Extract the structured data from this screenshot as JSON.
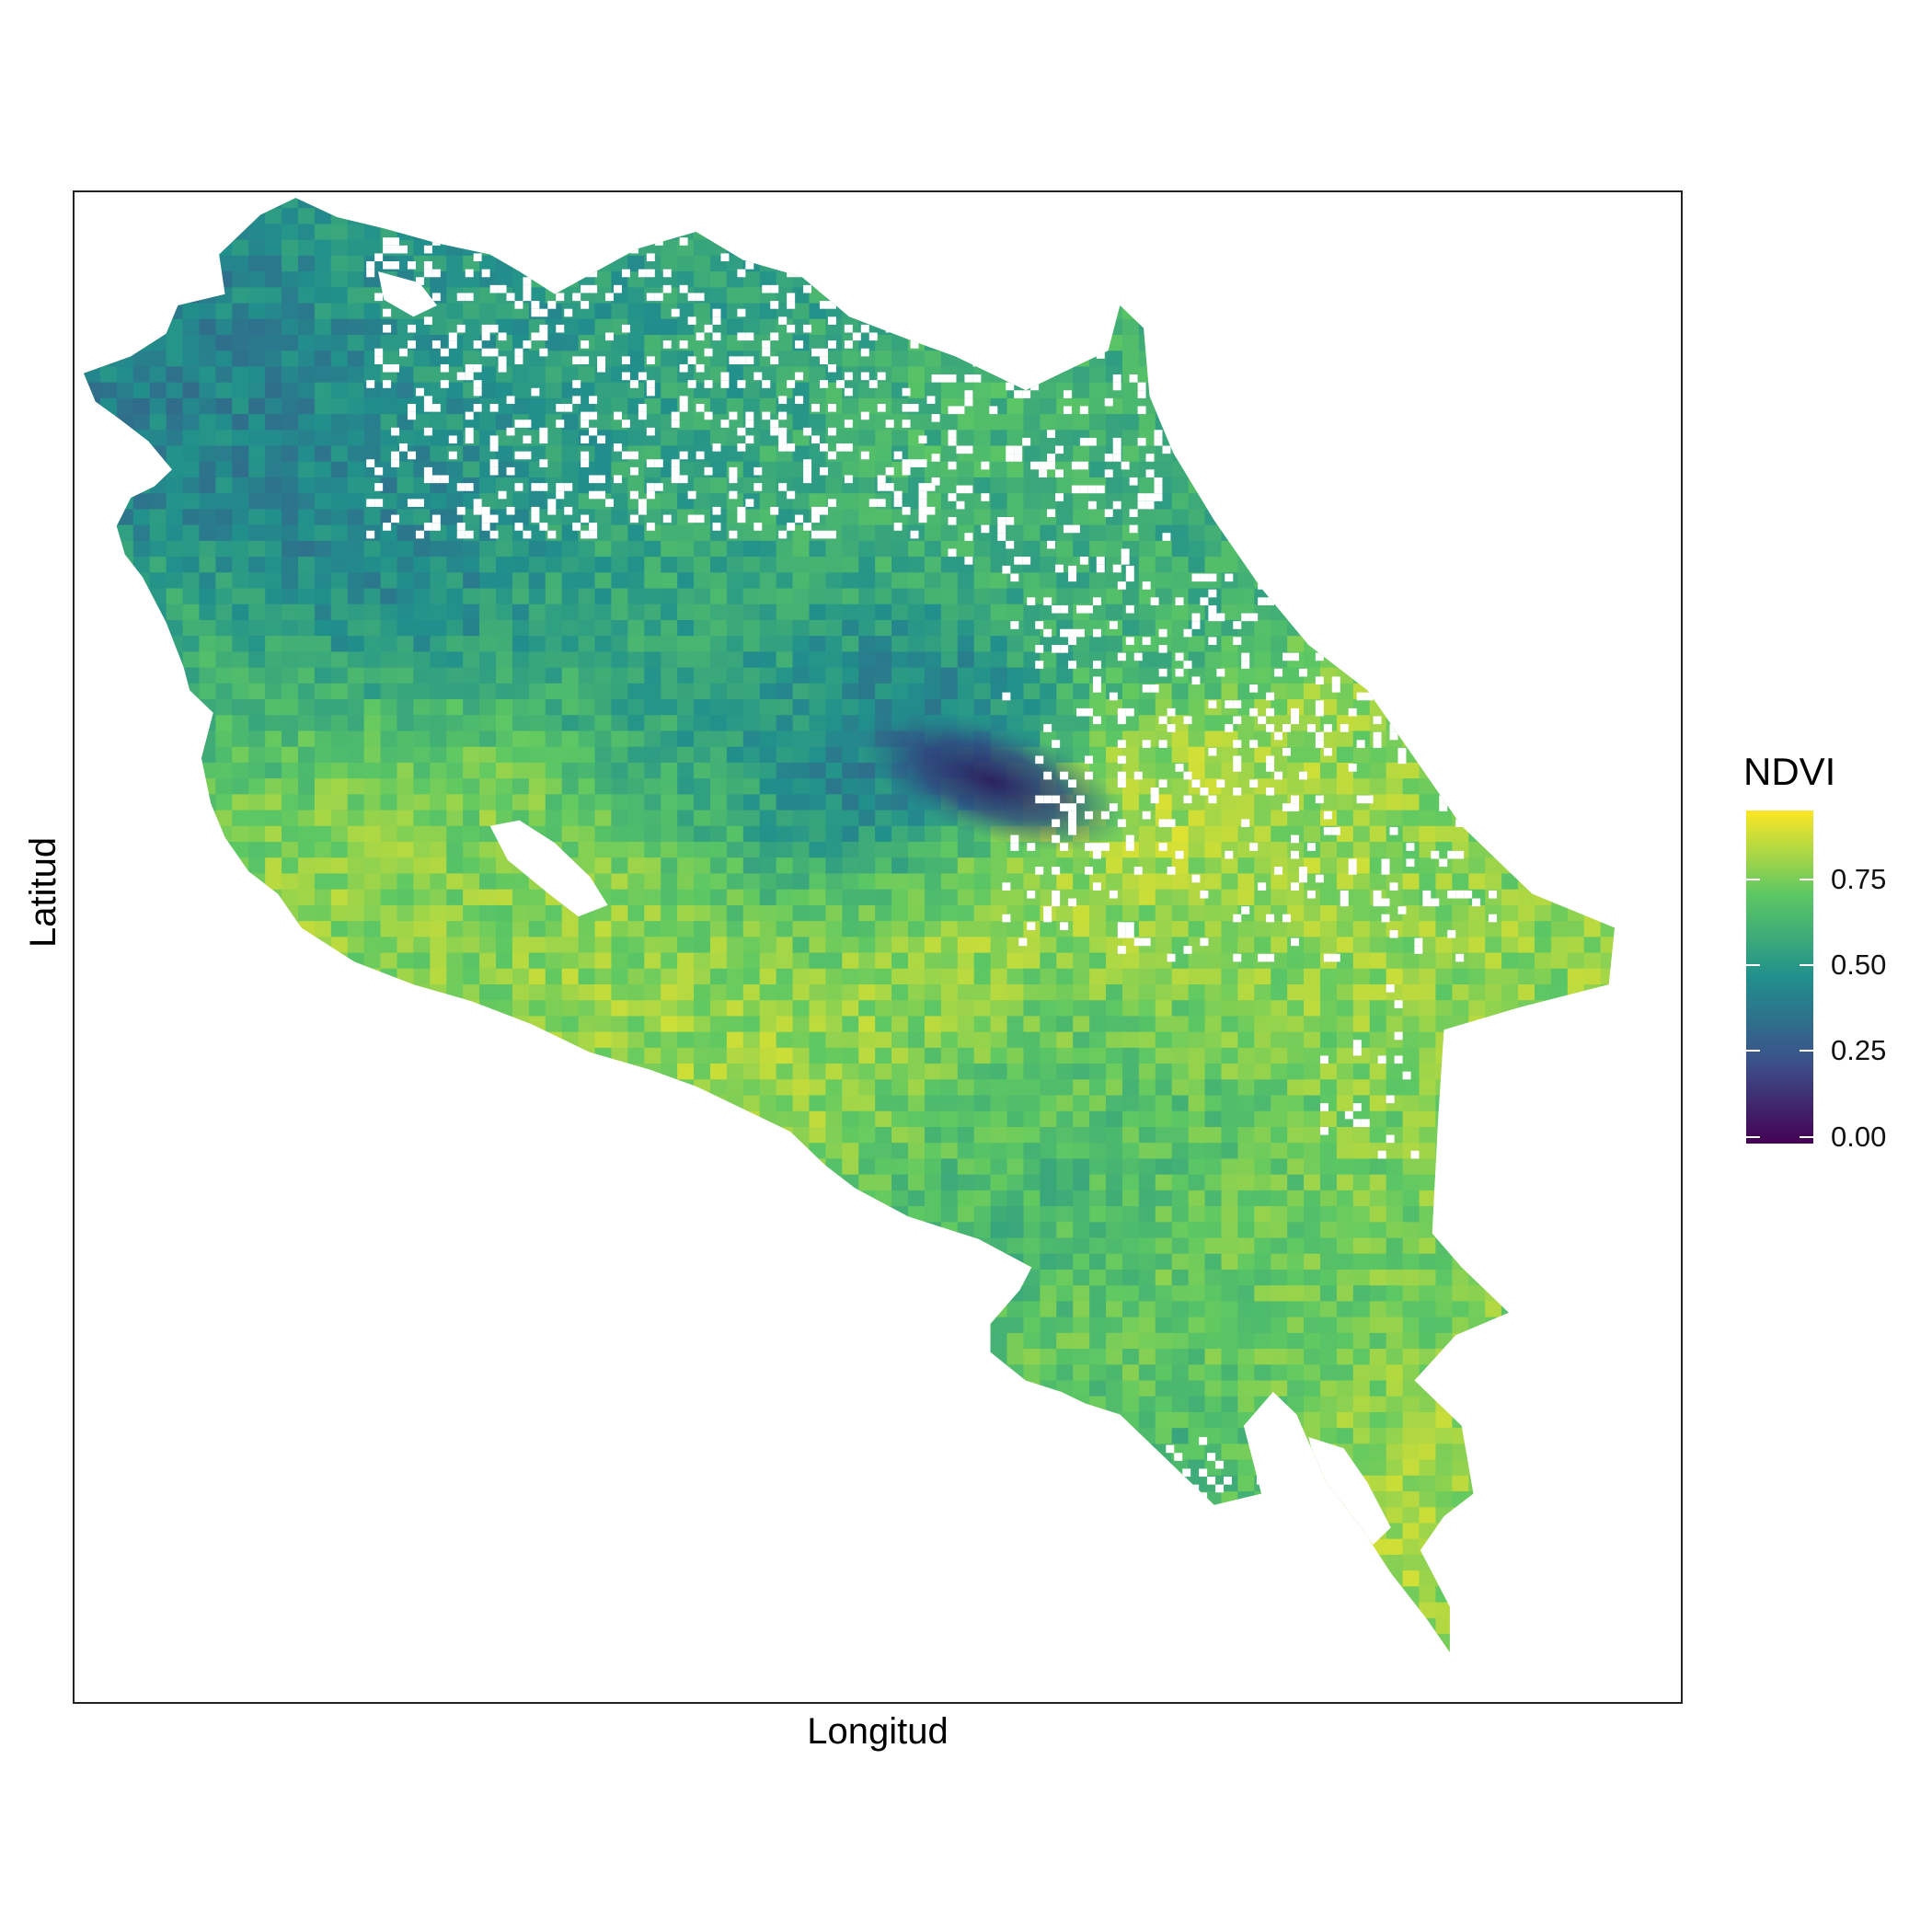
{
  "axes": {
    "xlabel": "Longitud",
    "ylabel": "Latitud"
  },
  "legend": {
    "title": "NDVI",
    "ticks": [
      {
        "label": "0.75",
        "value": 0.75
      },
      {
        "label": "0.50",
        "value": 0.5
      },
      {
        "label": "0.25",
        "value": 0.25
      },
      {
        "label": "0.00",
        "value": 0.0
      }
    ],
    "range": [
      -0.02,
      0.95
    ],
    "palette": [
      "#440154",
      "#3b528b",
      "#21908c",
      "#5dc863",
      "#fde725"
    ]
  },
  "map": {
    "region": "Costa Rica",
    "layer": "NDVI raster",
    "colorscale": "viridis"
  }
}
